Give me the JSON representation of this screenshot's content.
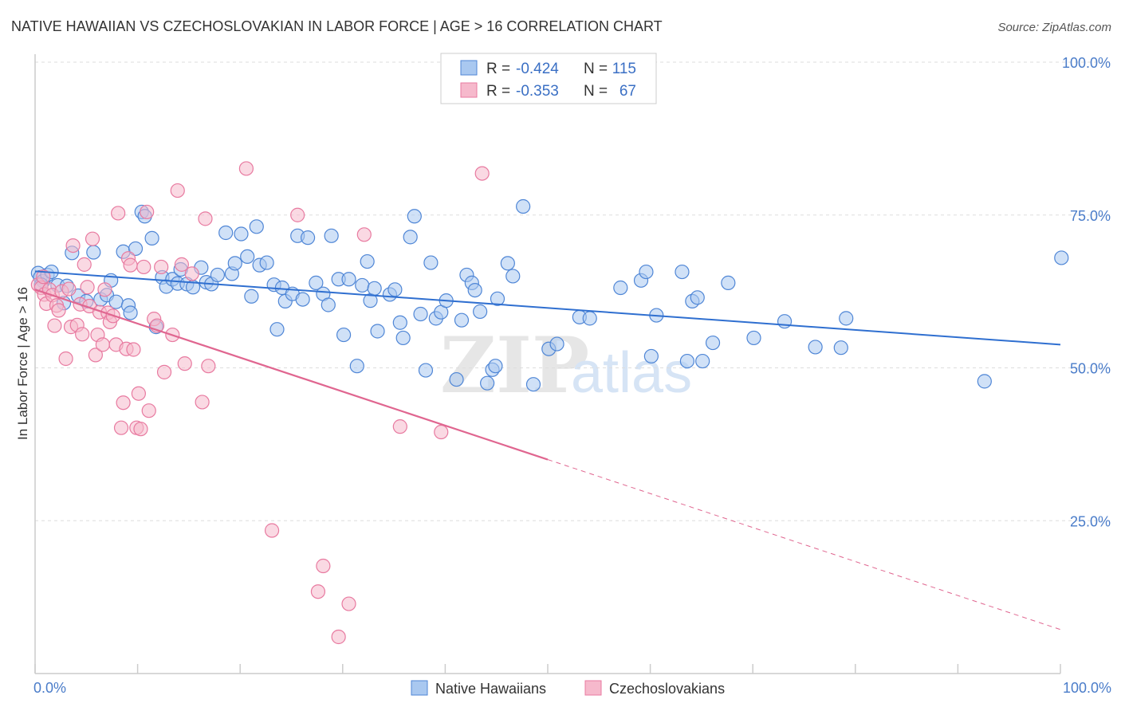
{
  "header": {
    "title": "NATIVE HAWAIIAN VS CZECHOSLOVAKIAN IN LABOR FORCE | AGE > 16 CORRELATION CHART",
    "source": "Source: ZipAtlas.com"
  },
  "watermark": {
    "zip": "ZIP",
    "atlas": "atlas"
  },
  "legend_box": {
    "rows": [
      {
        "r_label": "R =",
        "r_value": "-0.424",
        "n_label": "N =",
        "n_value": "115"
      },
      {
        "r_label": "R =",
        "r_value": "-0.353",
        "n_label": "N =",
        "n_value": "67"
      }
    ]
  },
  "bottom_legend": {
    "items": [
      {
        "label": "Native Hawaiians"
      },
      {
        "label": "Czechoslovakians"
      }
    ]
  },
  "colors": {
    "blue_fill": "#a9c8f0",
    "blue_stroke": "#4f86d6",
    "blue_line": "#2f6fd0",
    "pink_fill": "#f6b9cc",
    "pink_stroke": "#e87aa0",
    "pink_line": "#e06690",
    "grid": "#dddddd",
    "tick_text": "#4a7cc9"
  },
  "chart_data": {
    "type": "scatter",
    "title": "NATIVE HAWAIIAN VS CZECHOSLOVAKIAN IN LABOR FORCE | AGE > 16 CORRELATION CHART",
    "xlabel": "",
    "ylabel": "In Labor Force | Age > 16",
    "xlim": [
      0,
      100
    ],
    "ylim": [
      0,
      100
    ],
    "x_tick_labels": [
      "0.0%",
      "100.0%"
    ],
    "y_ticks": [
      25,
      50,
      75,
      100
    ],
    "y_tick_labels": [
      "25.0%",
      "50.0%",
      "75.0%",
      "100.0%"
    ],
    "grid": true,
    "legend": "top-center",
    "series": [
      {
        "name": "Native Hawaiians",
        "r": -0.424,
        "n": 115,
        "trend": {
          "x": [
            0,
            100
          ],
          "y": [
            65.8,
            53.8
          ]
        },
        "points": [
          [
            0.3,
            65.5
          ],
          [
            0.5,
            64.8
          ],
          [
            0.8,
            64.2
          ],
          [
            1.2,
            65.2
          ],
          [
            1.6,
            65.7
          ],
          [
            2.2,
            63.5
          ],
          [
            2.8,
            60.6
          ],
          [
            3.1,
            63.4
          ],
          [
            3.6,
            68.8
          ],
          [
            4.2,
            61.8
          ],
          [
            5.0,
            60.9
          ],
          [
            5.7,
            68.9
          ],
          [
            6.4,
            61.2
          ],
          [
            7.0,
            61.9
          ],
          [
            7.4,
            64.3
          ],
          [
            7.9,
            60.8
          ],
          [
            8.6,
            69.0
          ],
          [
            9.1,
            60.2
          ],
          [
            9.3,
            59.0
          ],
          [
            9.8,
            69.5
          ],
          [
            10.4,
            75.5
          ],
          [
            10.7,
            74.8
          ],
          [
            11.4,
            71.2
          ],
          [
            11.8,
            56.7
          ],
          [
            12.4,
            64.8
          ],
          [
            12.8,
            63.3
          ],
          [
            13.4,
            64.5
          ],
          [
            13.9,
            63.8
          ],
          [
            14.2,
            66.1
          ],
          [
            14.8,
            63.7
          ],
          [
            15.4,
            63.2
          ],
          [
            16.2,
            66.4
          ],
          [
            16.7,
            64.0
          ],
          [
            17.2,
            63.7
          ],
          [
            17.8,
            65.2
          ],
          [
            18.6,
            72.1
          ],
          [
            19.2,
            65.4
          ],
          [
            19.5,
            67.1
          ],
          [
            20.1,
            71.9
          ],
          [
            20.7,
            68.2
          ],
          [
            21.1,
            61.7
          ],
          [
            21.6,
            73.1
          ],
          [
            21.9,
            66.8
          ],
          [
            22.6,
            67.2
          ],
          [
            23.3,
            63.6
          ],
          [
            23.6,
            56.3
          ],
          [
            24.1,
            63.1
          ],
          [
            24.4,
            60.9
          ],
          [
            25.1,
            62.1
          ],
          [
            25.6,
            71.6
          ],
          [
            26.1,
            61.2
          ],
          [
            26.6,
            71.3
          ],
          [
            27.4,
            63.9
          ],
          [
            28.1,
            62.1
          ],
          [
            28.6,
            60.3
          ],
          [
            28.9,
            71.6
          ],
          [
            29.6,
            64.5
          ],
          [
            30.1,
            55.4
          ],
          [
            30.6,
            64.5
          ],
          [
            31.4,
            50.3
          ],
          [
            31.9,
            63.5
          ],
          [
            32.4,
            67.4
          ],
          [
            32.7,
            61.0
          ],
          [
            33.1,
            63.0
          ],
          [
            33.4,
            56.0
          ],
          [
            34.6,
            62.0
          ],
          [
            35.1,
            62.8
          ],
          [
            35.6,
            57.4
          ],
          [
            35.9,
            54.9
          ],
          [
            36.6,
            71.4
          ],
          [
            37.0,
            74.8
          ],
          [
            37.6,
            58.8
          ],
          [
            38.1,
            49.6
          ],
          [
            38.6,
            67.2
          ],
          [
            39.1,
            58.1
          ],
          [
            39.6,
            59.1
          ],
          [
            40.1,
            61.0
          ],
          [
            41.1,
            48.1
          ],
          [
            41.6,
            57.8
          ],
          [
            42.1,
            65.2
          ],
          [
            42.6,
            63.9
          ],
          [
            42.9,
            62.7
          ],
          [
            43.4,
            59.2
          ],
          [
            44.1,
            47.5
          ],
          [
            44.6,
            49.7
          ],
          [
            44.9,
            50.3
          ],
          [
            45.1,
            61.3
          ],
          [
            46.1,
            67.1
          ],
          [
            46.6,
            65.0
          ],
          [
            47.6,
            76.4
          ],
          [
            48.6,
            47.3
          ],
          [
            50.1,
            53.1
          ],
          [
            50.9,
            53.9
          ],
          [
            53.1,
            58.3
          ],
          [
            54.1,
            58.1
          ],
          [
            57.1,
            63.1
          ],
          [
            59.1,
            64.3
          ],
          [
            59.6,
            65.7
          ],
          [
            60.1,
            51.9
          ],
          [
            60.6,
            58.6
          ],
          [
            63.1,
            65.7
          ],
          [
            63.6,
            51.1
          ],
          [
            64.1,
            60.9
          ],
          [
            64.6,
            61.5
          ],
          [
            65.1,
            51.1
          ],
          [
            66.1,
            54.1
          ],
          [
            67.6,
            63.9
          ],
          [
            70.1,
            54.9
          ],
          [
            73.1,
            57.6
          ],
          [
            76.1,
            53.4
          ],
          [
            78.6,
            53.3
          ],
          [
            79.1,
            58.1
          ],
          [
            92.6,
            47.8
          ],
          [
            100.1,
            68.0
          ],
          [
            0.6,
            63.6
          ]
        ]
      },
      {
        "name": "Czechoslovakians",
        "r": -0.353,
        "n": 67,
        "trend": {
          "x": [
            0,
            50
          ],
          "y": [
            62.8,
            35.0
          ]
        },
        "trend_dashed": {
          "x": [
            50,
            100
          ],
          "y": [
            35.0,
            7.2
          ]
        },
        "points": [
          [
            0.3,
            63.6
          ],
          [
            0.6,
            63.1
          ],
          [
            0.9,
            62.0
          ],
          [
            1.1,
            60.5
          ],
          [
            1.4,
            62.8
          ],
          [
            1.7,
            61.9
          ],
          [
            2.1,
            60.2
          ],
          [
            2.3,
            59.4
          ],
          [
            2.6,
            62.5
          ],
          [
            3.0,
            51.5
          ],
          [
            3.3,
            62.9
          ],
          [
            3.5,
            56.7
          ],
          [
            3.7,
            70.0
          ],
          [
            4.1,
            57.0
          ],
          [
            4.4,
            60.4
          ],
          [
            4.6,
            55.5
          ],
          [
            4.8,
            66.9
          ],
          [
            5.1,
            63.2
          ],
          [
            5.3,
            60.1
          ],
          [
            5.6,
            71.1
          ],
          [
            5.9,
            52.1
          ],
          [
            6.1,
            55.4
          ],
          [
            6.3,
            59.1
          ],
          [
            6.6,
            53.8
          ],
          [
            6.8,
            62.8
          ],
          [
            7.1,
            59.0
          ],
          [
            7.3,
            57.5
          ],
          [
            7.6,
            58.5
          ],
          [
            7.9,
            53.8
          ],
          [
            8.1,
            75.3
          ],
          [
            8.4,
            40.2
          ],
          [
            8.6,
            44.3
          ],
          [
            8.9,
            53.1
          ],
          [
            9.1,
            67.9
          ],
          [
            9.3,
            66.8
          ],
          [
            9.6,
            53.0
          ],
          [
            9.9,
            40.2
          ],
          [
            10.1,
            45.8
          ],
          [
            10.3,
            40.0
          ],
          [
            10.6,
            66.5
          ],
          [
            10.9,
            75.5
          ],
          [
            11.1,
            43.0
          ],
          [
            11.6,
            58.0
          ],
          [
            11.9,
            56.9
          ],
          [
            12.3,
            66.5
          ],
          [
            12.6,
            49.3
          ],
          [
            13.4,
            55.4
          ],
          [
            13.9,
            79.0
          ],
          [
            14.3,
            66.9
          ],
          [
            14.6,
            50.7
          ],
          [
            15.3,
            65.4
          ],
          [
            16.3,
            44.4
          ],
          [
            16.6,
            74.4
          ],
          [
            16.9,
            50.3
          ],
          [
            20.6,
            82.6
          ],
          [
            23.1,
            23.4
          ],
          [
            25.6,
            75.0
          ],
          [
            27.6,
            13.4
          ],
          [
            28.1,
            17.6
          ],
          [
            29.6,
            6.0
          ],
          [
            30.6,
            11.4
          ],
          [
            32.1,
            71.8
          ],
          [
            35.6,
            40.4
          ],
          [
            39.6,
            39.5
          ],
          [
            43.6,
            81.8
          ],
          [
            1.9,
            56.9
          ],
          [
            0.8,
            64.9
          ]
        ]
      }
    ]
  }
}
